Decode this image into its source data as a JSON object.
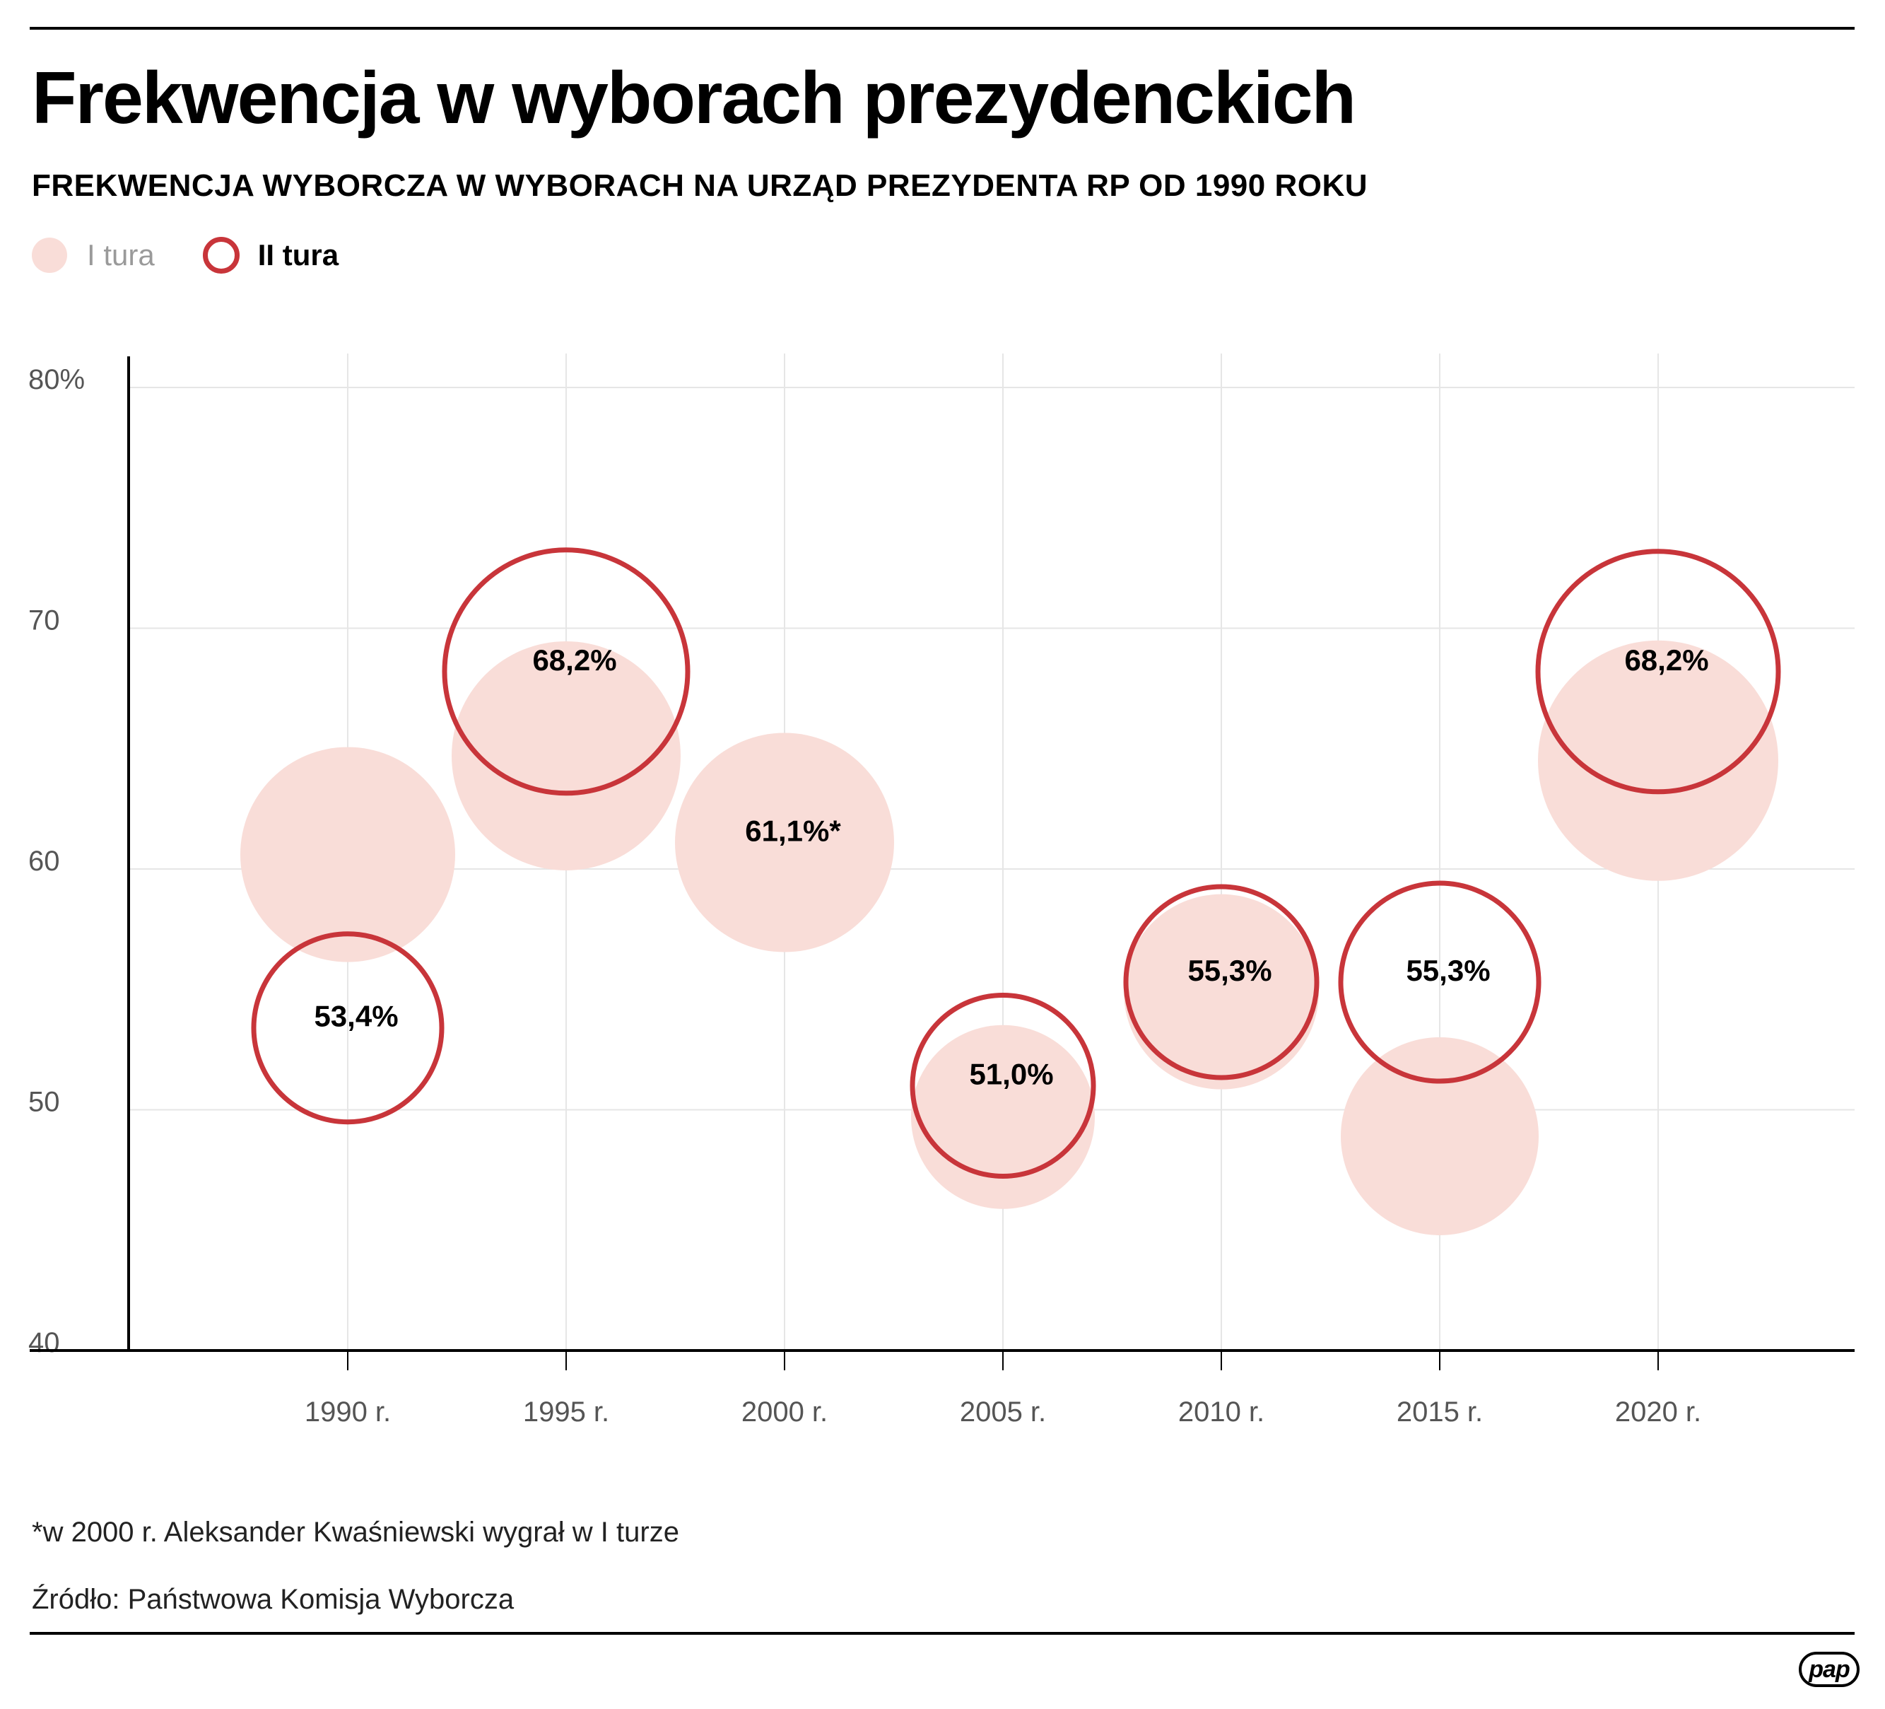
{
  "header": {
    "title": "Frekwencja w wyborach prezydenckich",
    "subtitle": "FREKWENCJA WYBORCZA W WYBORACH NA URZĄD PREZYDENTA RP OD 1990 ROKU"
  },
  "legend": {
    "round1_label": "I tura",
    "round2_label": "II tura"
  },
  "colors": {
    "round1_fill": "#f9ddd8",
    "round2_stroke": "#c8353a",
    "grid": "#e6e6e6",
    "axis": "#000000"
  },
  "chart_data": {
    "type": "scatter",
    "ylim": [
      40,
      80
    ],
    "yticks": [
      {
        "value": 40,
        "label": "40"
      },
      {
        "value": 50,
        "label": "50"
      },
      {
        "value": 60,
        "label": "60"
      },
      {
        "value": 70,
        "label": "70"
      },
      {
        "value": 80,
        "label": "80%"
      }
    ],
    "categories": [
      "1990 r.",
      "1995 r.",
      "2000 r.",
      "2005 r.",
      "2010 r.",
      "2015 r.",
      "2020 r."
    ],
    "series": [
      {
        "name": "I tura",
        "style": "filled",
        "values": [
          60.6,
          64.7,
          61.1,
          49.7,
          54.9,
          48.9,
          64.5
        ]
      },
      {
        "name": "II tura",
        "style": "ring",
        "values": [
          53.4,
          68.2,
          null,
          51.0,
          55.3,
          55.3,
          68.2
        ]
      }
    ],
    "data_labels": [
      "53,4%",
      "68,2%",
      "61,1%*",
      "51,0%",
      "55,3%",
      "55,3%",
      "68,2%"
    ],
    "label_series": [
      1,
      1,
      0,
      1,
      1,
      1,
      1
    ],
    "grid": true,
    "legend_position": "top-left"
  },
  "footer": {
    "footnote": "*w 2000 r. Aleksander Kwaśniewski wygrał w I turze",
    "source": "Źródło: Państwowa Komisja Wyborcza",
    "logo_text": "pap"
  }
}
